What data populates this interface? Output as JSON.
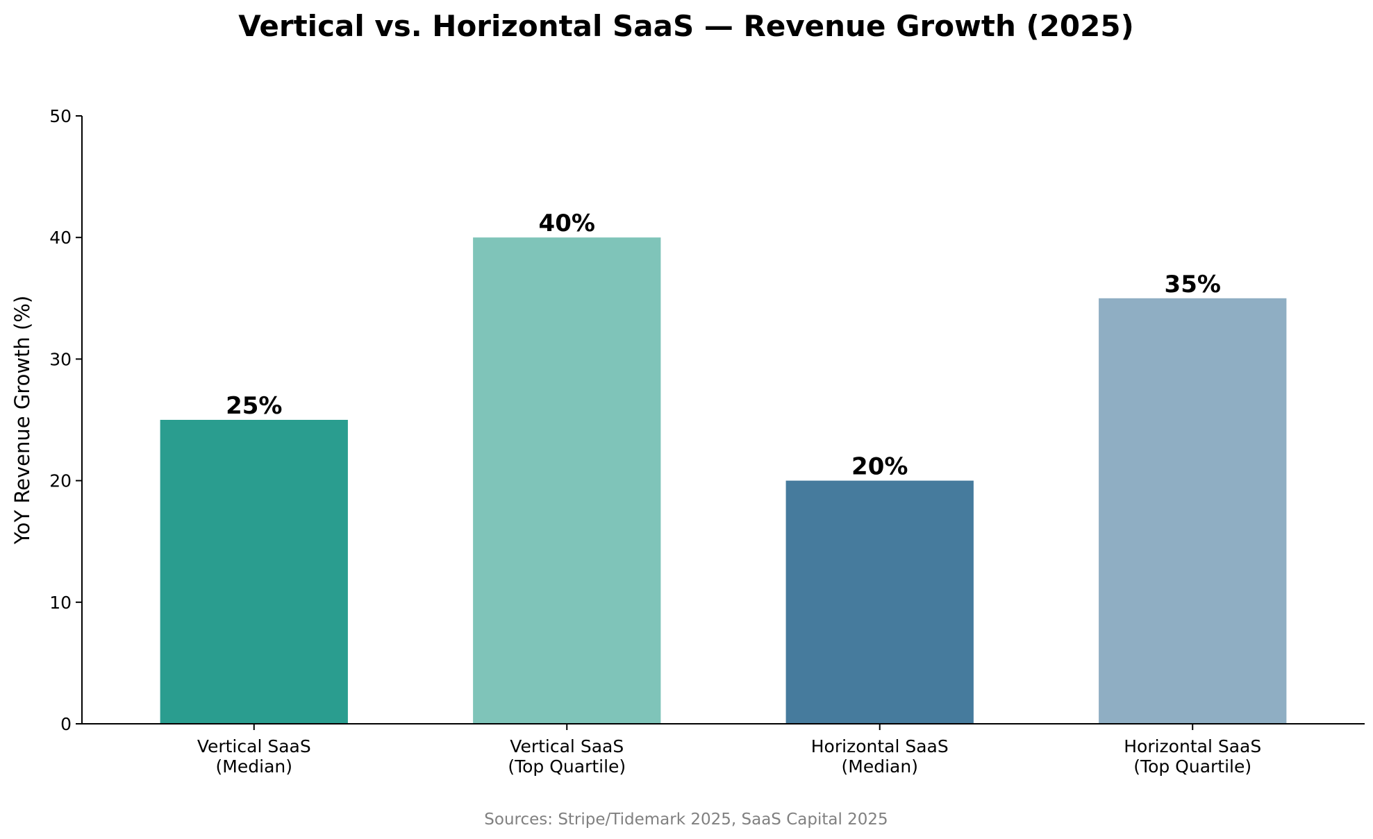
{
  "chart_data": {
    "type": "bar",
    "title": "Vertical vs. Horizontal SaaS — Revenue Growth (2025)",
    "xlabel": "",
    "ylabel": "YoY Revenue Growth (%)",
    "ylim": [
      0,
      50
    ],
    "yticks": [
      0,
      10,
      20,
      30,
      40,
      50
    ],
    "categories": [
      [
        "Vertical SaaS",
        "(Median)"
      ],
      [
        "Vertical SaaS",
        "(Top Quartile)"
      ],
      [
        "Horizontal SaaS",
        "(Median)"
      ],
      [
        "Horizontal SaaS",
        "(Top Quartile)"
      ]
    ],
    "values": [
      25,
      40,
      20,
      35
    ],
    "value_labels": [
      "25%",
      "40%",
      "20%",
      "35%"
    ],
    "colors": [
      "#2a9d8f",
      "#7fc4b9",
      "#467b9d",
      "#8faec3"
    ],
    "grid": false,
    "legend": "none",
    "source_note": "Sources: Stripe/Tidemark 2025, SaaS Capital 2025"
  }
}
